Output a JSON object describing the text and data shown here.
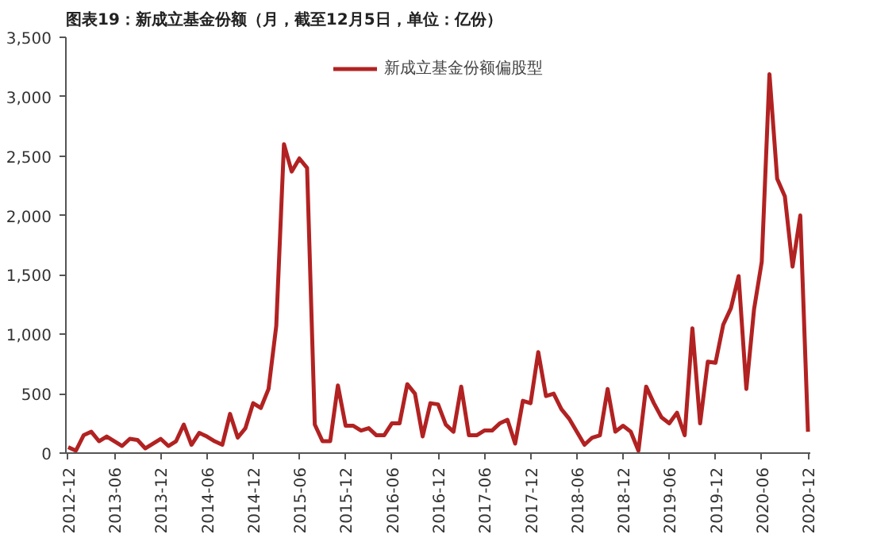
{
  "chart_data": {
    "type": "line",
    "title": "图表19：新成立基金份额（月，截至12月5日，单位：亿份）",
    "categories": [
      "2012-12",
      null,
      null,
      null,
      null,
      null,
      "2013-06",
      null,
      null,
      null,
      null,
      null,
      "2013-12",
      null,
      null,
      null,
      null,
      null,
      "2014-06",
      null,
      null,
      null,
      null,
      null,
      "2014-12",
      null,
      null,
      null,
      null,
      null,
      "2015-06",
      null,
      null,
      null,
      null,
      null,
      "2015-12",
      null,
      null,
      null,
      null,
      null,
      "2016-06",
      null,
      null,
      null,
      null,
      null,
      "2016-12",
      null,
      null,
      null,
      null,
      null,
      "2017-06",
      null,
      null,
      null,
      null,
      null,
      "2017-12",
      null,
      null,
      null,
      null,
      null,
      "2018-06",
      null,
      null,
      null,
      null,
      null,
      "2018-12",
      null,
      null,
      null,
      null,
      null,
      "2019-06",
      null,
      null,
      null,
      null,
      null,
      "2019-12",
      null,
      null,
      null,
      null,
      null,
      "2020-06",
      null,
      null,
      null,
      null,
      null,
      "2020-12"
    ],
    "series": [
      {
        "name": "新成立基金份额偏股型",
        "color": "#b22222",
        "values": [
          50,
          20,
          150,
          180,
          100,
          140,
          100,
          60,
          120,
          110,
          40,
          80,
          120,
          60,
          100,
          240,
          70,
          170,
          140,
          100,
          70,
          330,
          130,
          210,
          420,
          380,
          540,
          1070,
          2600,
          2370,
          2480,
          2400,
          240,
          100,
          100,
          570,
          230,
          230,
          190,
          210,
          150,
          150,
          250,
          250,
          580,
          500,
          140,
          420,
          410,
          240,
          180,
          560,
          150,
          150,
          190,
          190,
          250,
          280,
          80,
          440,
          420,
          850,
          480,
          500,
          370,
          290,
          180,
          70,
          130,
          150,
          540,
          180,
          230,
          180,
          20,
          560,
          420,
          300,
          250,
          340,
          150,
          1050,
          250,
          770,
          760,
          1080,
          1220,
          1490,
          540,
          1210,
          1610,
          3190,
          2310,
          2160,
          1570,
          2000,
          180
        ]
      }
    ],
    "ylim": [
      0,
      3500
    ],
    "yticks": [
      {
        "value": 0,
        "label": "0"
      },
      {
        "value": 500,
        "label": "500"
      },
      {
        "value": 1000,
        "label": "1,000"
      },
      {
        "value": 1500,
        "label": "1,500"
      },
      {
        "value": 2000,
        "label": "2,000"
      },
      {
        "value": 2500,
        "label": "2,500"
      },
      {
        "value": 3000,
        "label": "3,000"
      },
      {
        "value": 3500,
        "label": "3,500"
      }
    ],
    "grid": false,
    "legend": "top",
    "line_style": "solid",
    "marker": "none"
  }
}
